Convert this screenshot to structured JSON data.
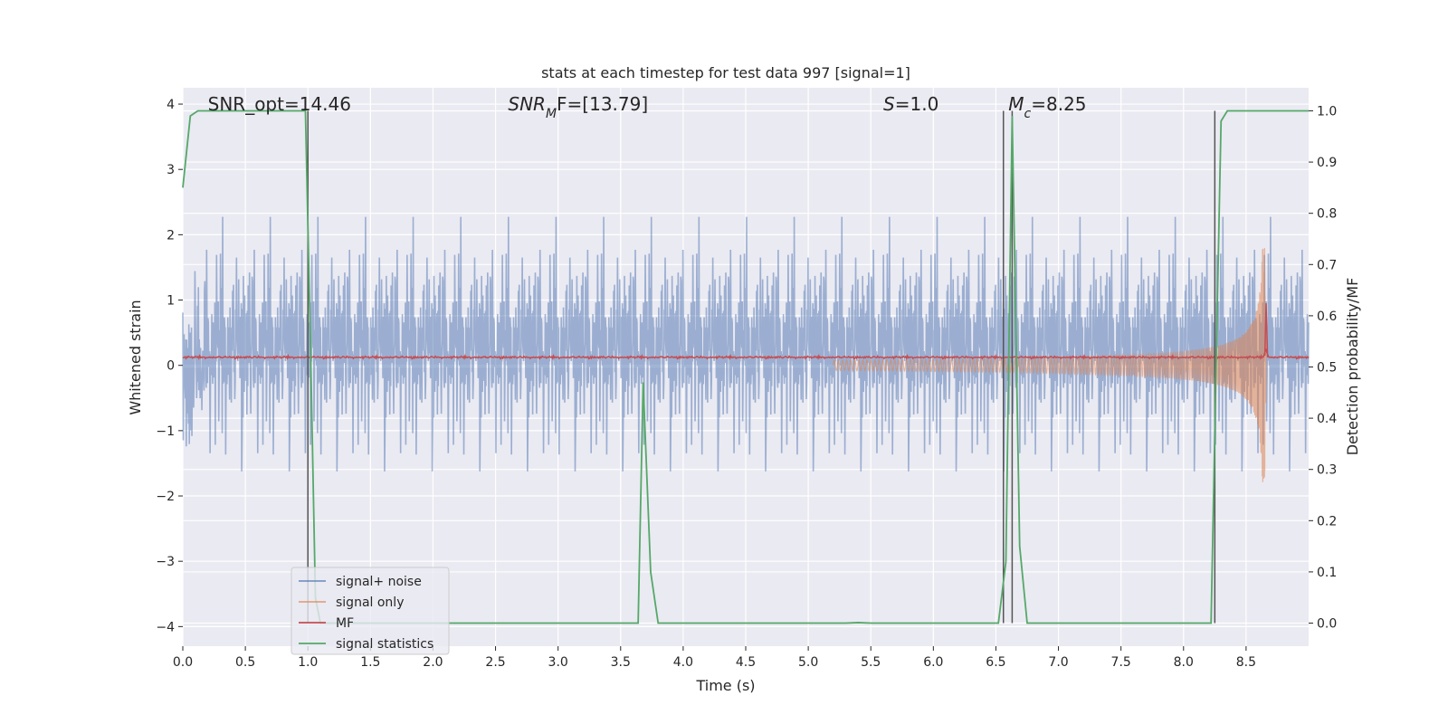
{
  "chart_data": {
    "type": "line",
    "title": "stats at each timestep for test data 997 [signal=1]",
    "xlabel": "Time (s)",
    "ylabel": "Whitened strain",
    "ylabel_right": "Detection probability/MF",
    "xlim": [
      0.0,
      9.0
    ],
    "ylim": [
      -4.3,
      4.25
    ],
    "ylim_right": [
      -0.045,
      1.045
    ],
    "xticks": [
      0.0,
      0.5,
      1.0,
      1.5,
      2.0,
      2.5,
      3.0,
      3.5,
      4.0,
      4.5,
      5.0,
      5.5,
      6.0,
      6.5,
      7.0,
      7.5,
      8.0,
      8.5
    ],
    "xtick_labels": [
      "0.0",
      "0.5",
      "1.0",
      "1.5",
      "2.0",
      "2.5",
      "3.0",
      "3.5",
      "4.0",
      "4.5",
      "5.0",
      "5.5",
      "6.0",
      "6.5",
      "7.0",
      "7.5",
      "8.0",
      "8.5"
    ],
    "yticks": [
      4,
      3,
      2,
      1,
      0,
      -1,
      -2,
      -3,
      -4
    ],
    "ytick_labels": [
      "4",
      "3",
      "2",
      "1",
      "0",
      "−1",
      "−2",
      "−3",
      "−4"
    ],
    "yticks_right": [
      1.0,
      0.9,
      0.8,
      0.7,
      0.6,
      0.5,
      0.4,
      0.3,
      0.2,
      0.1,
      0.0
    ],
    "ytick_labels_right": [
      "1.0",
      "0.9",
      "0.8",
      "0.7",
      "0.6",
      "0.5",
      "0.4",
      "0.3",
      "0.2",
      "0.1",
      "0.0"
    ],
    "grid": true,
    "legend_position": "lower-left",
    "colors": {
      "noise": "#4c72b0",
      "signal": "#dd8452",
      "mf": "#c44e52",
      "stats": "#55a868",
      "vlines": "#555555",
      "axes_bg": "#eaeaf2"
    },
    "annotations": [
      {
        "text": "SNR_opt=14.46",
        "x": 0.2,
        "y": 4.0
      },
      {
        "text": "SNR",
        "sub": "M",
        "tail": "F=[13.79]",
        "x": 2.6,
        "y": 4.0
      },
      {
        "text": "S",
        "tail": "=1.0",
        "x": 5.6,
        "y": 4.0
      },
      {
        "text": "M",
        "sub": "c",
        "tail": "=8.25",
        "x": 6.6,
        "y": 4.0
      }
    ],
    "series": [
      {
        "name": "signal+ noise",
        "kind": "noise",
        "amplitude": 2.3,
        "x_range": [
          0.0,
          9.0
        ]
      },
      {
        "name": "signal only",
        "kind": "chirp",
        "x_range": [
          5.2,
          8.66
        ],
        "peak_amplitude": 1.8,
        "merger_time": 8.65
      },
      {
        "name": "MF",
        "kind": "mf",
        "mean": 0.12,
        "peak_time": 8.66,
        "peak_value": 0.95
      },
      {
        "name": "signal statistics",
        "x": [
          0.0,
          0.06,
          0.12,
          0.3,
          0.6,
          0.98,
          1.02,
          1.06,
          1.1,
          3.6,
          3.64,
          3.68,
          3.74,
          3.8,
          5.3,
          5.4,
          5.5,
          6.52,
          6.58,
          6.63,
          6.69,
          6.75,
          8.22,
          8.26,
          8.3,
          8.35,
          9.0
        ],
        "y": [
          0.85,
          0.99,
          1.0,
          1.0,
          1.0,
          1.0,
          0.55,
          0.05,
          0.0,
          0.0,
          0.0,
          0.47,
          0.1,
          0.0,
          0.0,
          0.001,
          0.0,
          0.0,
          0.12,
          0.99,
          0.15,
          0.0,
          0.0,
          0.5,
          0.98,
          1.0,
          1.0
        ]
      }
    ],
    "vlines": [
      1.0,
      6.56,
      6.63,
      8.25
    ]
  }
}
